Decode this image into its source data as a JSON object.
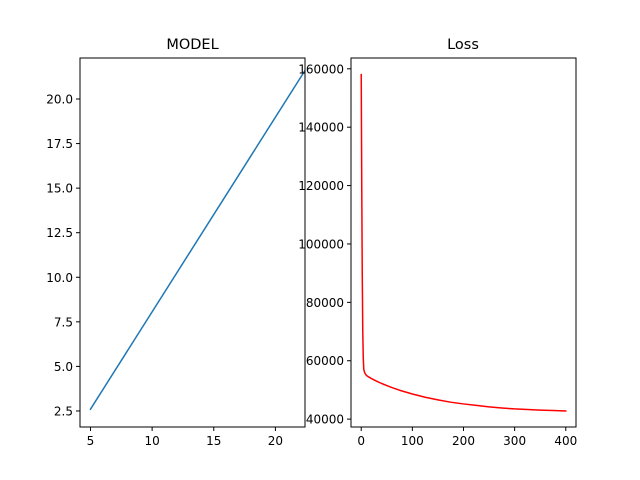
{
  "chart_data": [
    {
      "type": "line",
      "title": "MODEL",
      "xlabel": "",
      "ylabel": "",
      "xlim": [
        4.15,
        22.4
      ],
      "ylim": [
        1.6,
        22.3
      ],
      "xticks": [
        5,
        10,
        15,
        20
      ],
      "xtick_labels": [
        "5",
        "10",
        "15",
        "20"
      ],
      "yticks": [
        2.5,
        5.0,
        7.5,
        10.0,
        12.5,
        15.0,
        17.5,
        20.0
      ],
      "ytick_labels": [
        "2.5",
        "5.0",
        "7.5",
        "10.0",
        "12.5",
        "15.0",
        "17.5",
        "20.0"
      ],
      "grid": false,
      "series": [
        {
          "color": "#1f77b4",
          "x": [
            5,
            22.4
          ],
          "y": [
            2.6,
            21.6
          ]
        }
      ]
    },
    {
      "type": "line",
      "title": "Loss",
      "xlabel": "",
      "ylabel": "",
      "xlim": [
        -20,
        420
      ],
      "ylim": [
        37300,
        163700
      ],
      "xticks": [
        0,
        100,
        200,
        300,
        400
      ],
      "xtick_labels": [
        "0",
        "100",
        "200",
        "300",
        "400"
      ],
      "yticks": [
        40000,
        60000,
        80000,
        100000,
        120000,
        140000,
        160000
      ],
      "ytick_labels": [
        "40000",
        "60000",
        "80000",
        "100000",
        "120000",
        "140000",
        "160000"
      ],
      "grid": false,
      "series": [
        {
          "color": "#ff0000",
          "x": [
            0,
            1,
            2,
            3,
            4,
            5,
            7,
            10,
            15,
            20,
            30,
            40,
            50,
            60,
            75,
            100,
            125,
            150,
            175,
            200,
            225,
            250,
            275,
            300,
            325,
            350,
            375,
            400
          ],
          "y": [
            158000,
            120000,
            90000,
            70000,
            61000,
            57000,
            55800,
            55000,
            54400,
            53900,
            53000,
            52200,
            51500,
            50800,
            49900,
            48600,
            47500,
            46600,
            45800,
            45200,
            44700,
            44200,
            43800,
            43500,
            43300,
            43100,
            42950,
            42800
          ]
        }
      ]
    }
  ]
}
